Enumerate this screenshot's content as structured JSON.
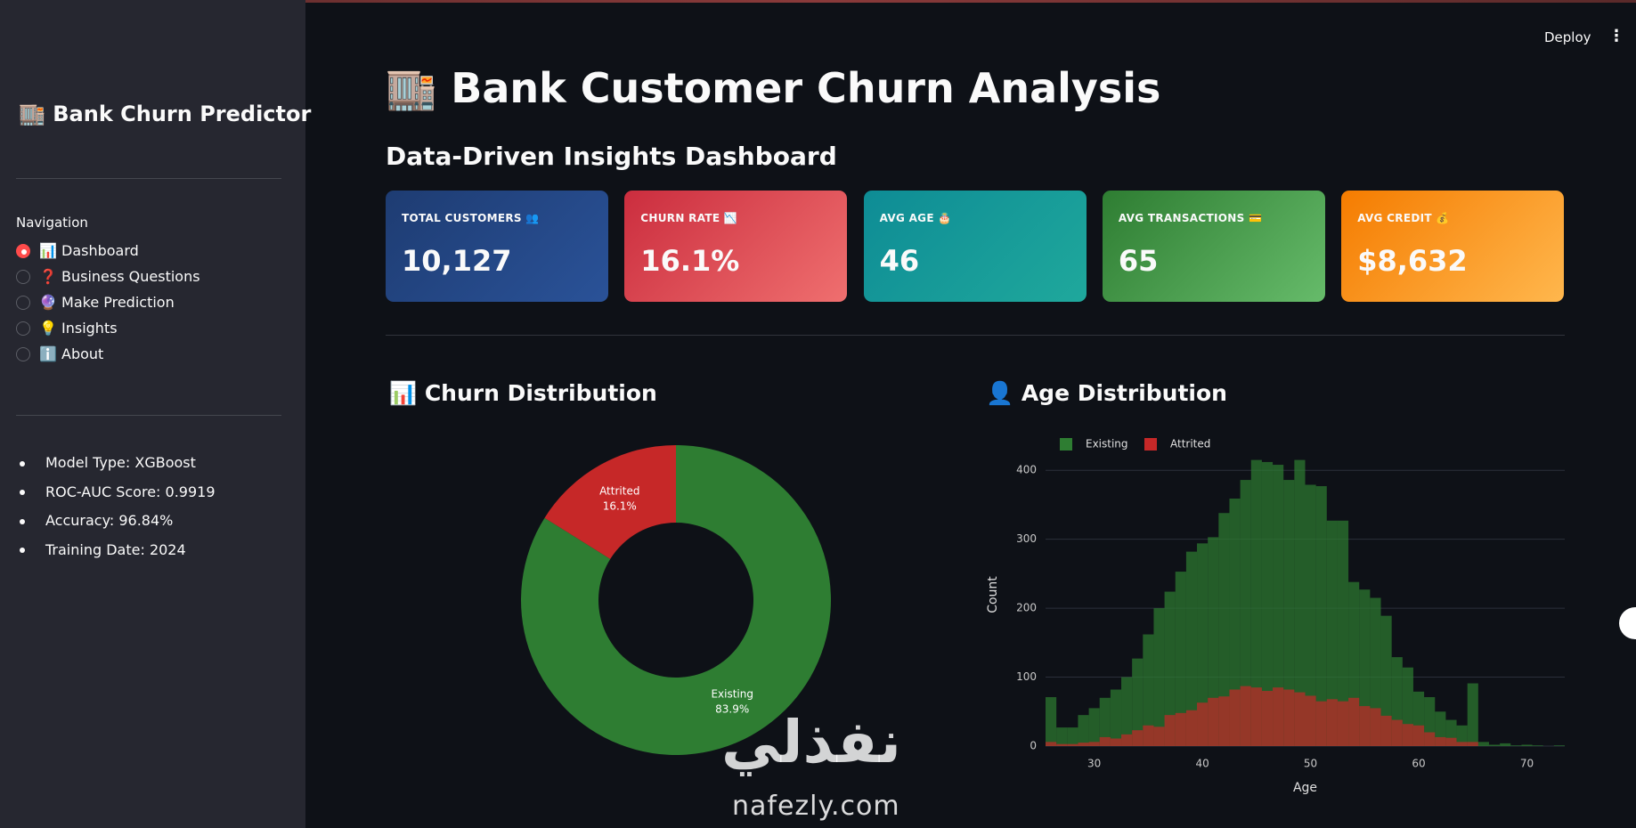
{
  "sidebar": {
    "title": "🏬 Bank Churn Predictor",
    "nav_label": "Navigation",
    "nav_items": [
      "📊 Dashboard",
      "❓ Business Questions",
      "🔮 Make Prediction",
      "💡 Insights",
      "ℹ️ About"
    ],
    "model_info": [
      "Model Type: XGBoost",
      "ROC-AUC Score: 0.9919",
      "Accuracy: 96.84%",
      "Training Date: 2024"
    ]
  },
  "toolbar": {
    "deploy": "Deploy"
  },
  "header": {
    "title": "🏬 Bank Customer Churn Analysis",
    "subtitle": "Data-Driven Insights Dashboard"
  },
  "metrics": [
    {
      "label": "TOTAL CUSTOMERS 👥",
      "value": "10,127"
    },
    {
      "label": "CHURN RATE 📉",
      "value": "16.1%"
    },
    {
      "label": "AVG AGE 🎂",
      "value": "46"
    },
    {
      "label": "AVG TRANSACTIONS 💳",
      "value": "65"
    },
    {
      "label": "AVG CREDIT 💰",
      "value": "$8,632"
    }
  ],
  "sections": [
    "📊 Churn Distribution",
    "👤 Age Distribution"
  ],
  "watermark": [
    "نفذلي",
    "nafezly.com"
  ],
  "chart_data": [
    {
      "type": "pie",
      "categories": [
        "Existing",
        "Attrited"
      ],
      "values": [
        83.9,
        16.1
      ],
      "value_labels": [
        "83.9%",
        "16.1%"
      ],
      "colors": [
        "#2e7d32",
        "#c62828"
      ],
      "hole": 0.5
    },
    {
      "type": "histogram",
      "bins": [
        25.5,
        26.5,
        27.5,
        28.5,
        29.5,
        30.5,
        31.5,
        32.5,
        33.5,
        34.5,
        35.5,
        36.5,
        37.5,
        38.5,
        39.5,
        40.5,
        41.5,
        42.5,
        43.5,
        44.5,
        45.5,
        46.5,
        47.5,
        48.5,
        49.5,
        50.5,
        51.5,
        52.5,
        53.5,
        54.5,
        55.5,
        56.5,
        57.5,
        58.5,
        59.5,
        60.5,
        61.5,
        62.5,
        63.5,
        64.5,
        65.5,
        66.5,
        67.5,
        68.5,
        69.5,
        70.5,
        71.5,
        72.5,
        73.5
      ],
      "series": [
        {
          "name": "Existing",
          "color": "#2e7d32",
          "values": [
            71,
            27,
            27,
            45,
            55,
            70,
            82,
            100,
            127,
            162,
            200,
            224,
            253,
            282,
            294,
            303,
            338,
            359,
            386,
            415,
            412,
            408,
            386,
            415,
            379,
            377,
            327,
            327,
            238,
            227,
            215,
            189,
            129,
            114,
            79,
            71,
            50,
            38,
            30,
            91,
            6,
            2,
            4,
            1,
            2,
            1,
            0,
            1
          ]
        },
        {
          "name": "Attrited",
          "color": "#c62828",
          "values": [
            6,
            3,
            3,
            5,
            6,
            13,
            11,
            17,
            23,
            30,
            28,
            45,
            48,
            52,
            63,
            70,
            72,
            82,
            87,
            85,
            80,
            85,
            82,
            78,
            73,
            65,
            68,
            65,
            70,
            58,
            55,
            44,
            38,
            32,
            30,
            20,
            13,
            12,
            6,
            6,
            0,
            0,
            0,
            0,
            0,
            0,
            0,
            0
          ]
        }
      ],
      "xlabel": "Age",
      "ylabel": "Count",
      "xlim": [
        25.5,
        73.5
      ],
      "ylim": [
        0,
        430
      ],
      "xticks": [
        30,
        40,
        50,
        60,
        70
      ],
      "yticks": [
        0,
        100,
        200,
        300,
        400
      ],
      "grid": true,
      "legend": "top-left"
    }
  ]
}
